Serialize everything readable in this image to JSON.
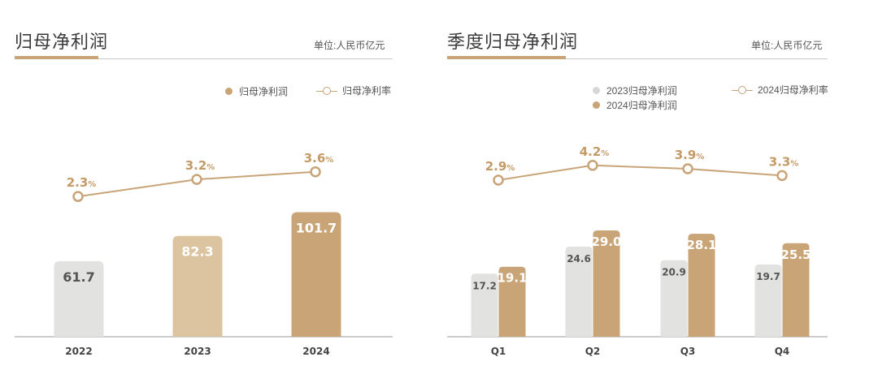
{
  "colors": {
    "accent": "#c8a478",
    "bar_gray": "#e2e2e0",
    "bar_light_gold": "#dcc4a0",
    "bar_gold": "#c9a477",
    "axis": "#9a9a9a",
    "rate_text": "#c49a66"
  },
  "left": {
    "title": "归母净利润",
    "unit": "单位:人民币亿元",
    "legend_bar": "归母净利润",
    "legend_line": "归母净利率"
  },
  "right": {
    "title": "季度归母净利润",
    "unit": "单位:人民币亿元",
    "legend_2023": "2023归母净利润",
    "legend_2024": "2024归母净利润",
    "legend_line": "2024归母净利率"
  },
  "chart_data": [
    {
      "type": "bar",
      "categories": [
        "2022",
        "2023",
        "2024"
      ],
      "series": [
        {
          "name": "归母净利润",
          "values": [
            61.7,
            82.3,
            101.7
          ]
        },
        {
          "name": "归母净利率",
          "type": "line",
          "values": [
            2.3,
            3.2,
            3.6
          ],
          "unit": "%"
        }
      ],
      "title": "归母净利润",
      "unit": "单位:人民币亿元"
    },
    {
      "type": "bar",
      "categories": [
        "Q1",
        "Q2",
        "Q3",
        "Q4"
      ],
      "series": [
        {
          "name": "2023归母净利润",
          "values": [
            17.2,
            24.6,
            20.9,
            19.7
          ]
        },
        {
          "name": "2024归母净利润",
          "values": [
            19.1,
            29.0,
            28.1,
            25.5
          ]
        },
        {
          "name": "2024归母净利率",
          "type": "line",
          "values": [
            2.9,
            4.2,
            3.9,
            3.3
          ],
          "unit": "%"
        }
      ],
      "title": "季度归母净利润",
      "unit": "单位:人民币亿元"
    }
  ]
}
